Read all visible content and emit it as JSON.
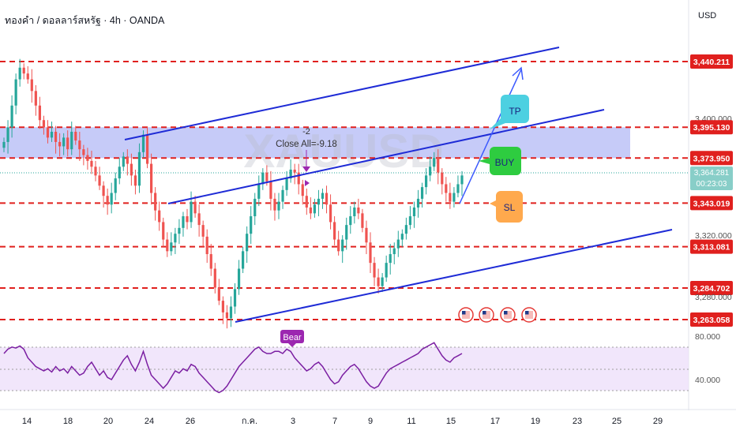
{
  "header": {
    "title": "ทองคำ / ดอลลาร์สหรัฐ · 4h · OANDA",
    "currency": "USD",
    "watermark": "XAUUSD"
  },
  "colors": {
    "up": "#26a69a",
    "down": "#ef5350",
    "level": "#e0201e",
    "channel": "#1e2bd6",
    "zone": "#b3b9f5",
    "rsi": "#7b1fa2",
    "rsi_band": "#ede0fa",
    "tp": "#4dd0e1",
    "buy": "#2ecc40",
    "sl": "#ffa94d",
    "bear": "#9c27b0"
  },
  "annotations": {
    "trade_count": "-2",
    "close_all": "Close All=-9.18",
    "bear": "Bear",
    "tp": "TP",
    "buy": "BUY",
    "sl": "SL"
  },
  "price_axis": {
    "ticks": [
      "3,400.000",
      "3,320.000"
    ],
    "partial_labels": [
      "3,364.281",
      "00:23:03",
      "3,280.000"
    ],
    "level_labels": [
      "3,440.211",
      "3,395.130",
      "3,373.950",
      "3,343.019",
      "3,313.081",
      "3,284.702",
      "3,263.058"
    ]
  },
  "rsi_axis": {
    "ticks": [
      "80.000",
      "40.000"
    ]
  },
  "time_axis": {
    "ticks": [
      "14",
      "18",
      "20",
      "24",
      "26",
      "ก.ค.",
      "3",
      "7",
      "9",
      "11",
      "15",
      "17",
      "19",
      "23",
      "25",
      "29"
    ]
  },
  "chart_data": {
    "type": "candlestick",
    "symbol": "XAUUSD",
    "timeframe": "4h",
    "ylim": [
      3258,
      3452
    ],
    "horizontal_levels": [
      3440.211,
      3395.13,
      3373.95,
      3343.019,
      3313.081,
      3284.702,
      3263.058
    ],
    "zone": [
      3373.95,
      3395.13
    ],
    "rsi_levels": [
      80,
      40
    ],
    "closes": [
      3385,
      3395,
      3410,
      3428,
      3436,
      3432,
      3428,
      3420,
      3410,
      3400,
      3395,
      3388,
      3392,
      3385,
      3382,
      3388,
      3380,
      3392,
      3386,
      3380,
      3376,
      3372,
      3368,
      3362,
      3355,
      3348,
      3342,
      3350,
      3360,
      3368,
      3375,
      3370,
      3362,
      3355,
      3378,
      3390,
      3370,
      3350,
      3338,
      3330,
      3318,
      3310,
      3316,
      3322,
      3326,
      3334,
      3330,
      3344,
      3336,
      3328,
      3320,
      3308,
      3298,
      3285,
      3276,
      3268,
      3264,
      3272,
      3284,
      3298,
      3310,
      3322,
      3334,
      3346,
      3356,
      3364,
      3358,
      3346,
      3338,
      3344,
      3352,
      3360,
      3366,
      3364,
      3356,
      3348,
      3340,
      3336,
      3342,
      3346,
      3350,
      3342,
      3330,
      3318,
      3310,
      3318,
      3328,
      3334,
      3340,
      3336,
      3326,
      3316,
      3302,
      3292,
      3286,
      3292,
      3302,
      3308,
      3312,
      3318,
      3322,
      3328,
      3334,
      3340,
      3346,
      3354,
      3362,
      3368,
      3374,
      3364,
      3356,
      3350,
      3344,
      3350,
      3356,
      3362
    ],
    "rsi": [
      64,
      68,
      70,
      69,
      71,
      68,
      60,
      56,
      52,
      50,
      48,
      50,
      47,
      52,
      48,
      50,
      46,
      52,
      48,
      44,
      46,
      52,
      56,
      50,
      44,
      48,
      42,
      40,
      46,
      52,
      58,
      62,
      54,
      48,
      56,
      66,
      54,
      44,
      40,
      36,
      32,
      36,
      42,
      48,
      46,
      50,
      48,
      54,
      52,
      46,
      42,
      38,
      34,
      30,
      28,
      30,
      34,
      40,
      46,
      52,
      56,
      60,
      64,
      68,
      70,
      66,
      64,
      64,
      66,
      66,
      64,
      68,
      66,
      60,
      56,
      52,
      48,
      50,
      54,
      56,
      52,
      46,
      40,
      36,
      38,
      44,
      48,
      52,
      54,
      50,
      44,
      38,
      34,
      32,
      34,
      40,
      46,
      50,
      52,
      54,
      56,
      58,
      60,
      62,
      64,
      68,
      70,
      72,
      74,
      68,
      62,
      58,
      56,
      60,
      62,
      64
    ]
  }
}
